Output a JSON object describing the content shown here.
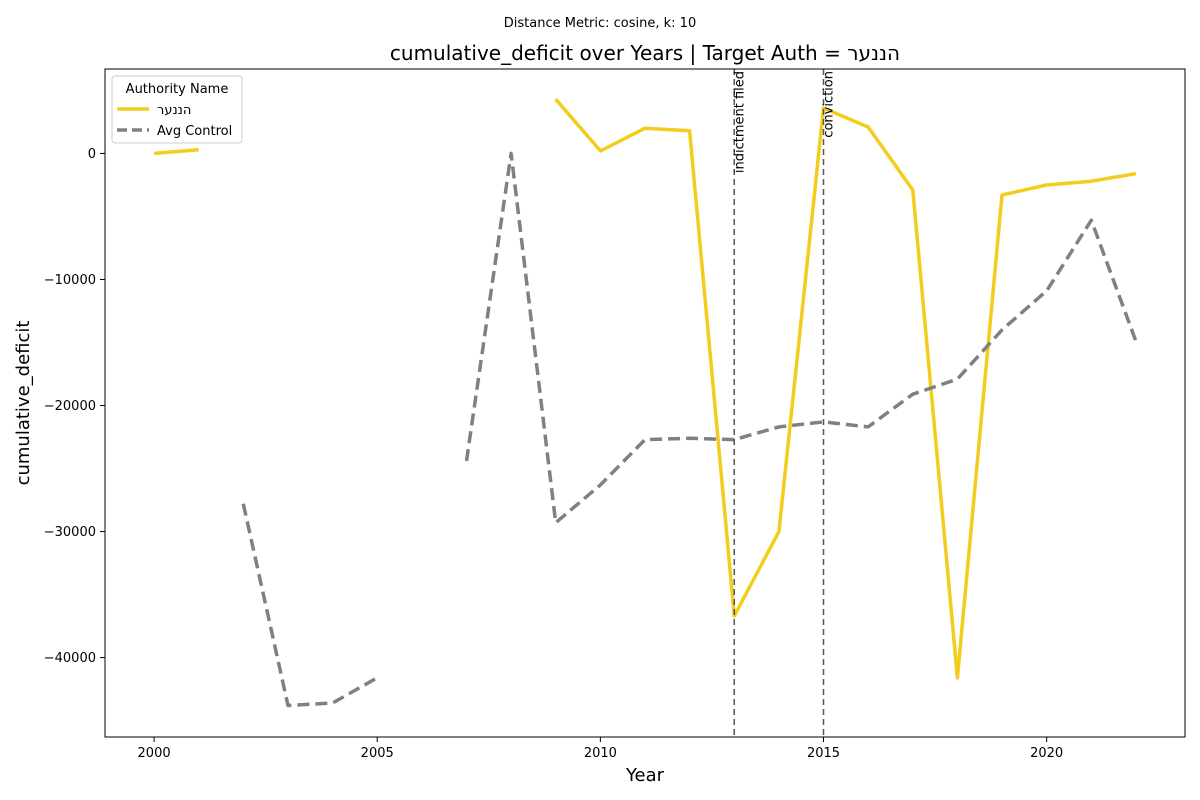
{
  "chart_data": {
    "type": "line",
    "suptitle": "Distance Metric: cosine, k: 10",
    "title": "cumulative_deficit over Years | Target Auth = הננער",
    "xlabel": "Year",
    "ylabel": "cumulative_deficit",
    "xlim": [
      1998.9,
      2023.1
    ],
    "ylim": [
      -46300,
      6700
    ],
    "xticks": [
      2000,
      2005,
      2010,
      2015,
      2020
    ],
    "yticks": [
      0,
      -10000,
      -20000,
      -30000,
      -40000
    ],
    "ytick_labels": [
      "0",
      "−10000",
      "−20000",
      "−30000",
      "−40000"
    ],
    "grid": false,
    "legend": {
      "title": "Authority Name",
      "placement": "top-left"
    },
    "series": [
      {
        "name": "הננער",
        "color": "#f2cd1d",
        "style": "solid",
        "points": [
          [
            2000,
            0
          ],
          [
            2001,
            300
          ],
          [
            2002,
            null
          ],
          [
            2009,
            4300
          ],
          [
            2010,
            200
          ],
          [
            2011,
            2000
          ],
          [
            2012,
            1800
          ],
          [
            2013,
            -36700
          ],
          [
            2014,
            -30000
          ],
          [
            2015,
            3600
          ],
          [
            2016,
            2100
          ],
          [
            2017,
            -2900
          ],
          [
            2018,
            -41600
          ],
          [
            2019,
            -3300
          ],
          [
            2020,
            -2500
          ],
          [
            2021,
            -2200
          ],
          [
            2022,
            -1600
          ]
        ]
      },
      {
        "name": "Avg Control",
        "color": "#808080",
        "style": "dashed",
        "points": [
          [
            2002,
            -27800
          ],
          [
            2003,
            -43800
          ],
          [
            2004,
            -43600
          ],
          [
            2005,
            -41600
          ],
          [
            2006,
            null
          ],
          [
            2007,
            -24400
          ],
          [
            2008,
            0
          ],
          [
            2009,
            -29300
          ],
          [
            2010,
            -26300
          ],
          [
            2011,
            -22700
          ],
          [
            2012,
            -22600
          ],
          [
            2013,
            -22700
          ],
          [
            2014,
            -21700
          ],
          [
            2015,
            -21300
          ],
          [
            2016,
            -21700
          ],
          [
            2017,
            -19100
          ],
          [
            2018,
            -17900
          ],
          [
            2019,
            -14000
          ],
          [
            2020,
            -10900
          ],
          [
            2021,
            -5300
          ],
          [
            2022,
            -14900
          ]
        ]
      }
    ],
    "vlines": [
      {
        "x": 2013,
        "label": "indictment filed"
      },
      {
        "x": 2015,
        "label": "conviction"
      }
    ]
  }
}
